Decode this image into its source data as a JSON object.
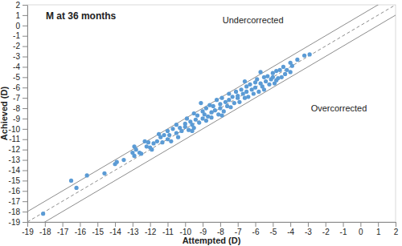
{
  "chart_data": {
    "type": "scatter",
    "title": "M at 36 months",
    "x_label": "Attempted (D)",
    "y_label": "Achieved (D)",
    "annotations": [
      "Undercorrected",
      "Overcorrected"
    ],
    "color": "#5b9bd5",
    "marker": "circle",
    "xlim": [
      -19,
      2
    ],
    "ylim": [
      -19,
      2
    ],
    "xticks": [
      -19,
      -18,
      -17,
      -16,
      -15,
      -14,
      -13,
      -12,
      -11,
      -10,
      -9,
      -8,
      -7,
      -6,
      -5,
      -4,
      -3,
      -2,
      -1,
      0,
      1,
      2
    ],
    "yticks": [
      -19,
      -18,
      -17,
      -16,
      -15,
      -14,
      -13,
      -12,
      -11,
      -10,
      -9,
      -8,
      -7,
      -6,
      -5,
      -4,
      -3,
      -2,
      -1,
      0,
      1,
      2
    ],
    "reference_lines": [
      {
        "offset": -1,
        "line_style": "solid"
      },
      {
        "offset": 0,
        "line_style": "dashed"
      },
      {
        "offset": 1,
        "line_style": "solid"
      }
    ],
    "x": [
      -18.1,
      -16.5,
      -16.2,
      -15.6,
      -14.6,
      -14.0,
      -13.9,
      -13.5,
      -13.0,
      -12.9,
      -12.8,
      -12.6,
      -12.5,
      -12.3,
      -12.2,
      -12.1,
      -12.0,
      -11.9,
      -11.8,
      -11.6,
      -11.5,
      -11.4,
      -11.3,
      -11.2,
      -11.0,
      -11.0,
      -10.9,
      -10.8,
      -10.7,
      -10.5,
      -10.5,
      -10.4,
      -10.3,
      -10.2,
      -10.0,
      -10.0,
      -9.9,
      -9.8,
      -9.7,
      -9.6,
      -9.5,
      -9.5,
      -9.4,
      -9.3,
      -9.2,
      -9.1,
      -9.0,
      -9.0,
      -8.9,
      -8.8,
      -8.8,
      -8.7,
      -8.6,
      -8.5,
      -8.5,
      -8.4,
      -8.3,
      -8.2,
      -8.1,
      -8.0,
      -8.0,
      -7.9,
      -7.8,
      -7.7,
      -7.6,
      -7.5,
      -7.5,
      -7.4,
      -7.3,
      -7.2,
      -7.1,
      -7.0,
      -7.0,
      -6.9,
      -6.8,
      -6.7,
      -6.6,
      -6.5,
      -6.5,
      -6.4,
      -6.3,
      -6.2,
      -6.1,
      -6.0,
      -6.0,
      -5.9,
      -5.8,
      -5.7,
      -5.6,
      -5.5,
      -5.5,
      -5.4,
      -5.3,
      -5.2,
      -5.1,
      -5.0,
      -5.0,
      -4.9,
      -4.8,
      -4.7,
      -4.6,
      -4.5,
      -4.4,
      -4.3,
      -4.2,
      -4.0,
      -4.0,
      -3.9,
      -3.6,
      -3.2,
      -2.9,
      -12.9,
      -9.6,
      -7.9,
      -6.6,
      -5.7,
      -4.8
    ],
    "values": [
      -18.2,
      -15.0,
      -15.7,
      -14.5,
      -14.3,
      -13.4,
      -13.2,
      -13.0,
      -12.3,
      -12.6,
      -12.0,
      -12.3,
      -12.4,
      -11.2,
      -11.7,
      -11.3,
      -11.8,
      -12.0,
      -11.4,
      -11.2,
      -10.5,
      -10.8,
      -11.3,
      -10.6,
      -11.0,
      -10.2,
      -10.6,
      -11.2,
      -10.0,
      -9.6,
      -10.4,
      -10.8,
      -9.9,
      -10.2,
      -9.5,
      -9.8,
      -9.0,
      -10.1,
      -9.3,
      -9.6,
      -8.5,
      -9.9,
      -9.1,
      -8.7,
      -9.4,
      -7.5,
      -9.0,
      -8.3,
      -8.6,
      -9.2,
      -8.0,
      -8.8,
      -7.7,
      -8.4,
      -8.9,
      -7.8,
      -8.2,
      -7.2,
      -8.6,
      -7.6,
      -8.0,
      -7.0,
      -8.3,
      -7.4,
      -7.8,
      -6.6,
      -7.2,
      -7.9,
      -6.9,
      -7.5,
      -6.4,
      -7.0,
      -6.8,
      -7.4,
      -6.2,
      -6.6,
      -7.0,
      -5.9,
      -6.4,
      -6.9,
      -5.7,
      -6.2,
      -6.6,
      -5.5,
      -6.0,
      -5.2,
      -6.4,
      -5.6,
      -5.9,
      -5.0,
      -6.2,
      -5.4,
      -4.9,
      -5.7,
      -5.2,
      -5.0,
      -4.6,
      -5.6,
      -4.4,
      -5.1,
      -4.3,
      -5.0,
      -4.0,
      -4.7,
      -4.3,
      -3.6,
      -4.5,
      -3.9,
      -3.3,
      -2.9,
      -2.8,
      -11.7,
      -10.2,
      -8.7,
      -5.4,
      -4.5,
      -5.3
    ]
  }
}
